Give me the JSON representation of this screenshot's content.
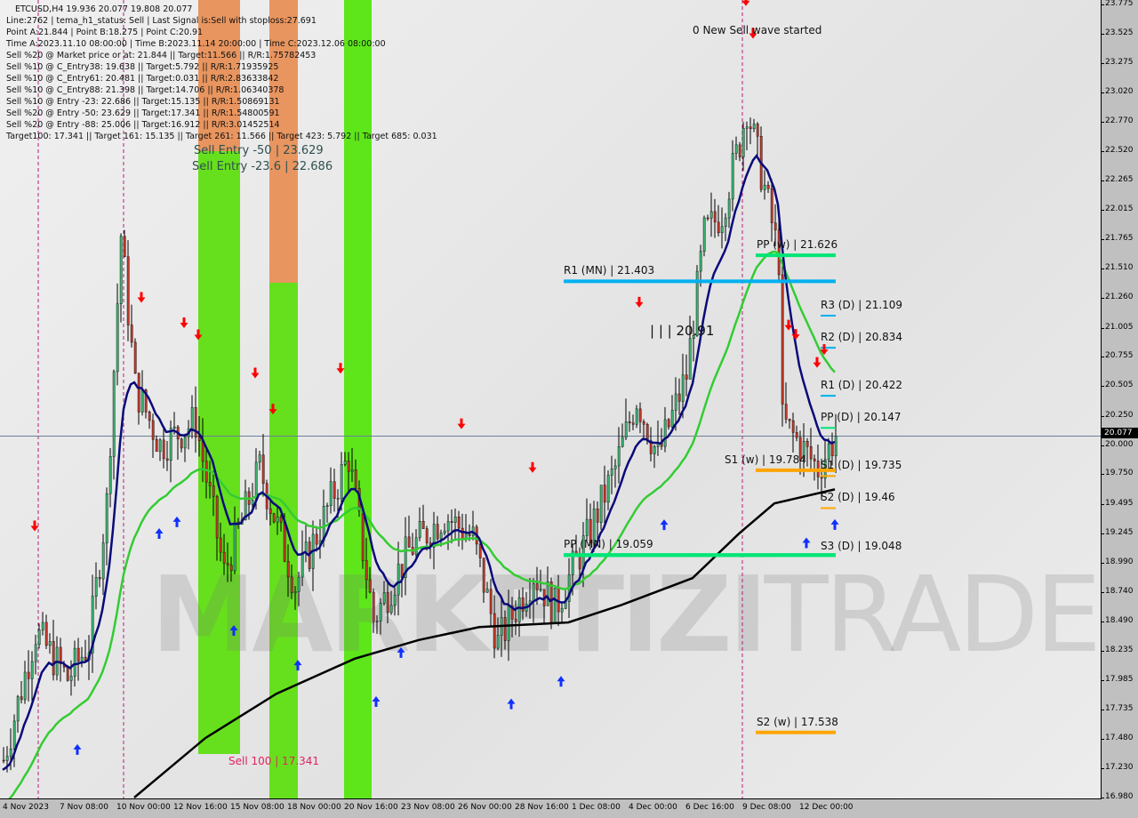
{
  "header": {
    "title": "ETCUSD,H4  19.936 20.077 19.808 20.077",
    "lines": [
      "Line:2762 | tema_h1_status: Sell | Last Signal is:Sell with stoploss:27.691",
      "Point A:21.844 | Point B:18.275 | Point C:20.91",
      "Time A:2023.11.10 08:00:00 | Time B:2023.11.14 20:00:00 | Time C:2023.12.06 08:00:00",
      "Sell %20 @ Market price or at: 21.844 || Target:11.566 || R/R:1.75782453",
      "Sell %10 @ C_Entry38: 19.638 || Target:5.792 || R/R:1.71935925",
      "Sell %10 @ C_Entry61: 20.481 || Target:0.031 || R/R:2.83633842",
      "Sell %10 @ C_Entry88: 21.398 || Target:14.706 || R/R:1.06340378",
      "Sell %10 @ Entry -23: 22.686 || Target:15.135 || R/R:1.50869131",
      "Sell %20 @ Entry -50: 23.629 || Target:17.341 || R/R:1.54800591",
      "Sell %20 @ Entry -88: 25.006 || Target:16.912 || R/R:3.01452514",
      "Target100: 17.341 || Target 161: 15.135 || Target 261: 11.566 || Target 423: 5.792 || Target 685: 0.031"
    ]
  },
  "zones": {
    "sell_entry_50": "Sell Entry -50 | 23.629",
    "sell_entry_236": "Sell Entry -23.6 | 22.686",
    "sell_100": "Sell 100 | 17.341"
  },
  "annotations": {
    "new_wave": "0 New Sell wave started",
    "point_c": "| | | 20.91"
  },
  "watermark": {
    "bold": "MARKETIZI",
    "thin": "TRADE"
  },
  "colors": {
    "bull": "#3cb371",
    "bear": "#c0392b",
    "ema_fast": "#0a0a7a",
    "ema_slow": "#33cc33",
    "ma_long": "#000000",
    "level_blue": "#00b0f0",
    "level_green": "#00e676",
    "level_orange": "#ffa500",
    "zone_green": "#66e01c",
    "zone_orange": "#e8955f"
  },
  "current_price": "20.077",
  "chart_data": {
    "type": "candlestick",
    "symbol": "ETCUSD",
    "timeframe": "H4",
    "ylim": [
      16.98,
      23.775
    ],
    "yticks": [
      "23.775",
      "23.525",
      "23.275",
      "23.020",
      "22.770",
      "22.520",
      "22.265",
      "22.015",
      "21.765",
      "21.510",
      "21.260",
      "21.005",
      "20.755",
      "20.505",
      "20.250",
      "20.000",
      "19.750",
      "19.495",
      "19.245",
      "18.990",
      "18.740",
      "18.490",
      "18.235",
      "17.985",
      "17.735",
      "17.480",
      "17.230",
      "16.980"
    ],
    "xticks": [
      "4 Nov 2023",
      "7 Nov 08:00",
      "10 Nov 00:00",
      "12 Nov 16:00",
      "15 Nov 08:00",
      "18 Nov 00:00",
      "20 Nov 16:00",
      "23 Nov 08:00",
      "26 Nov 00:00",
      "28 Nov 16:00",
      "1 Dec 08:00",
      "4 Dec 00:00",
      "6 Dec 16:00",
      "9 Dec 08:00",
      "12 Dec 00:00"
    ],
    "price_path": [
      [
        "2023-11-04 16:00",
        17.3
      ],
      [
        "2023-11-06 04:00",
        18.4
      ],
      [
        "2023-11-07 16:00",
        18.0
      ],
      [
        "2023-11-08 16:00",
        18.3
      ],
      [
        "2023-11-09 12:00",
        19.5
      ],
      [
        "2023-11-10 04:00",
        21.8
      ],
      [
        "2023-11-10 20:00",
        20.5
      ],
      [
        "2023-11-12 00:00",
        20.0
      ],
      [
        "2023-11-13 16:00",
        20.2
      ],
      [
        "2023-11-15 00:00",
        18.9
      ],
      [
        "2023-11-16 16:00",
        19.8
      ],
      [
        "2023-11-18 08:00",
        18.8
      ],
      [
        "2023-11-19 12:00",
        19.3
      ],
      [
        "2023-11-20 20:00",
        19.9
      ],
      [
        "2023-11-22 00:00",
        18.5
      ],
      [
        "2023-11-23 16:00",
        19.1
      ],
      [
        "2023-11-25 08:00",
        19.4
      ],
      [
        "2023-11-26 16:00",
        19.2
      ],
      [
        "2023-11-27 20:00",
        18.3
      ],
      [
        "2023-11-29 12:00",
        18.9
      ],
      [
        "2023-11-30 12:00",
        18.6
      ],
      [
        "2023-12-02 00:00",
        19.2
      ],
      [
        "2023-12-03 08:00",
        19.8
      ],
      [
        "2023-12-04 08:00",
        20.4
      ],
      [
        "2023-12-05 08:00",
        19.9
      ],
      [
        "2023-12-06 16:00",
        20.6
      ],
      [
        "2023-12-07 12:00",
        21.8
      ],
      [
        "2023-12-08 08:00",
        22.0
      ],
      [
        "2023-12-09 04:00",
        22.6
      ],
      [
        "2023-12-09 12:00",
        22.9
      ],
      [
        "2023-12-10 08:00",
        22.2
      ],
      [
        "2023-12-11 00:00",
        21.6
      ],
      [
        "2023-12-11 04:00",
        20.2
      ],
      [
        "2023-12-12 00:00",
        20.0
      ],
      [
        "2023-12-12 20:00",
        19.8
      ],
      [
        "2023-12-13 16:00",
        20.077
      ]
    ],
    "long_ma": [
      [
        "2023-11-10 20:00",
        16.98
      ],
      [
        "2023-11-14 04:00",
        17.49
      ],
      [
        "2023-11-17 12:00",
        17.87
      ],
      [
        "2023-11-21 04:00",
        18.17
      ],
      [
        "2023-11-24 04:00",
        18.33
      ],
      [
        "2023-11-27 00:00",
        18.44
      ],
      [
        "2023-12-01 04:00",
        18.48
      ],
      [
        "2023-12-03 16:00",
        18.63
      ],
      [
        "2023-12-07 00:00",
        18.86
      ],
      [
        "2023-12-09 04:00",
        19.24
      ],
      [
        "2023-12-10 20:00",
        19.5
      ],
      [
        "2023-12-13 16:00",
        19.62
      ]
    ],
    "levels": [
      {
        "label": "R1 (MN) | 21.403",
        "price": 21.403,
        "color": "#00b0f0",
        "span": "long"
      },
      {
        "label": "PP (MN) | 19.059",
        "price": 19.059,
        "color": "#00e676",
        "span": "long"
      },
      {
        "label": "PP (w) | 21.626",
        "price": 21.626,
        "color": "#00e676",
        "span": "week"
      },
      {
        "label": "S1 (w) | 19.784",
        "price": 19.784,
        "color": "#ffa500",
        "span": "week"
      },
      {
        "label": "S2 (w) | 17.538",
        "price": 17.538,
        "color": "#ffa500",
        "span": "week"
      },
      {
        "label": "R3 (D) | 21.109",
        "price": 21.109,
        "color": "#00b0f0",
        "span": "day"
      },
      {
        "label": "R2 (D) | 20.834",
        "price": 20.834,
        "color": "#00b0f0",
        "span": "day"
      },
      {
        "label": "R1 (D) | 20.422",
        "price": 20.422,
        "color": "#00b0f0",
        "span": "day"
      },
      {
        "label": "PP (D) | 20.147",
        "price": 20.147,
        "color": "#00e676",
        "span": "day"
      },
      {
        "label": "S1 (D) | 19.735",
        "price": 19.735,
        "color": "#ffa500",
        "span": "day"
      },
      {
        "label": "S2 (D) | 19.46",
        "price": 19.46,
        "color": "#ffa500",
        "span": "day"
      },
      {
        "label": "S3 (D) | 19.048",
        "price": 19.048,
        "color": "#00e676",
        "span": "day"
      }
    ],
    "sell_signals": [
      "2023-11-06 04:00",
      "2023-11-11 04:00",
      "2023-11-13 04:00",
      "2023-11-13 20:00",
      "2023-11-16 12:00",
      "2023-11-17 08:00",
      "2023-11-20 12:00",
      "2023-11-26 04:00",
      "2023-11-29 12:00",
      "2023-12-04 12:00",
      "2023-12-09 12:00",
      "2023-12-09 20:00",
      "2023-12-11 12:00",
      "2023-12-11 20:00",
      "2023-12-12 20:00",
      "2023-12-13 04:00"
    ],
    "buy_signals": [
      "2023-11-08 04:00",
      "2023-11-12 00:00",
      "2023-11-12 20:00",
      "2023-11-15 12:00",
      "2023-11-18 12:00",
      "2023-11-22 04:00",
      "2023-11-23 08:00",
      "2023-11-28 12:00",
      "2023-11-30 20:00",
      "2023-12-05 16:00",
      "2023-12-12 08:00",
      "2023-12-13 16:00"
    ]
  }
}
